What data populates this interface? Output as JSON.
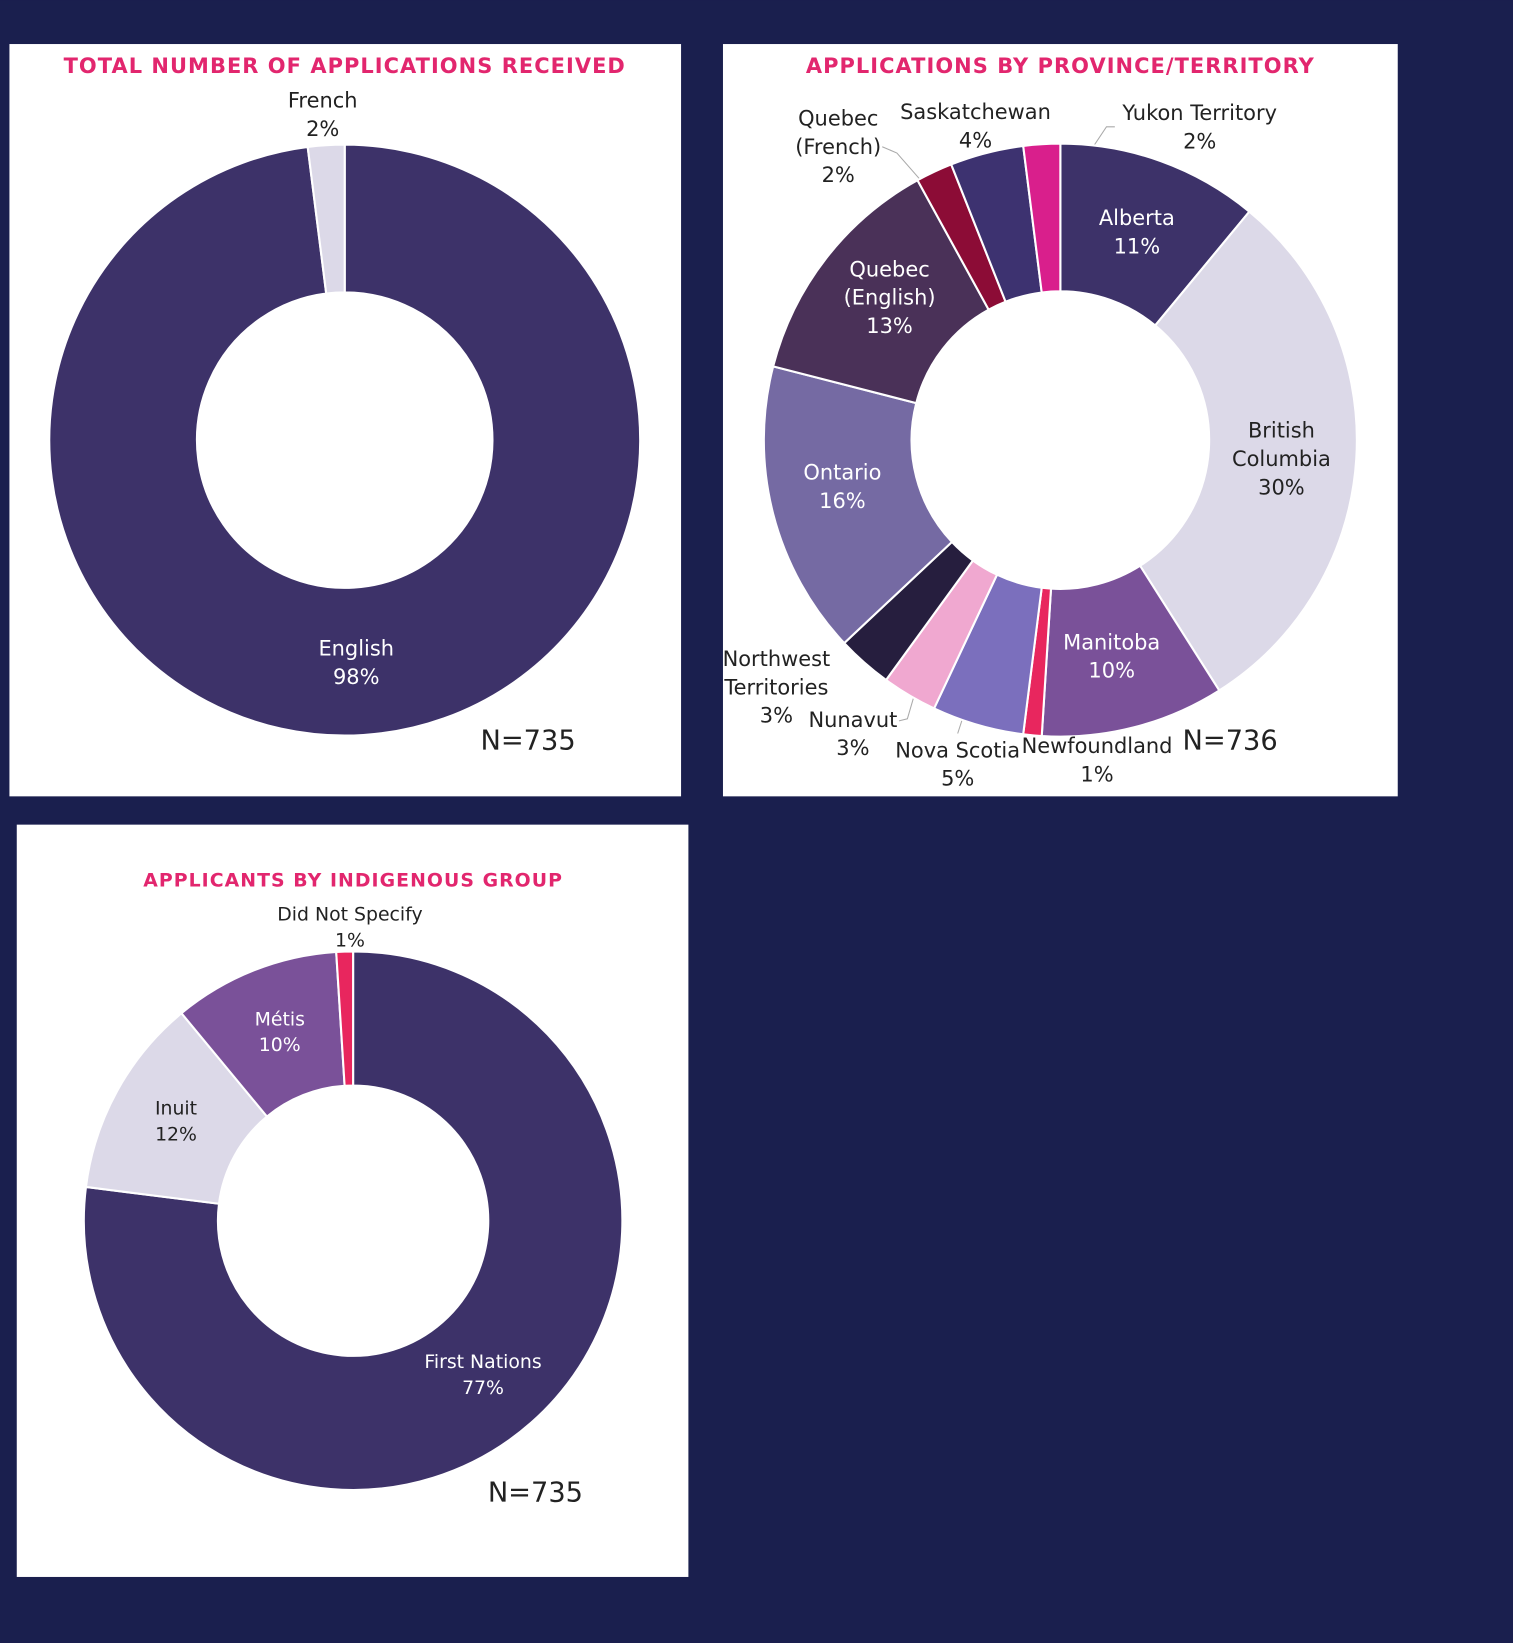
{
  "chart_data": [
    {
      "type": "donut",
      "title": "TOTAL NUMBER OF APPLICATIONS RECEIVED",
      "categories": [
        "English",
        "French"
      ],
      "values": [
        98,
        2
      ],
      "value_labels": [
        "98%",
        "2%"
      ],
      "colors": [
        "#3d3269",
        "#dcd9e8"
      ],
      "annotation": "N=735"
    },
    {
      "type": "donut",
      "title": "APPLICATIONS BY PROVINCE/TERRITORY",
      "categories": [
        "Alberta",
        "British Columbia",
        "Manitoba",
        "Newfoundland",
        "Nova Scotia",
        "Nunavut",
        "Northwest Territories",
        "Ontario",
        "Quebec (English)",
        "Quebec (French)",
        "Saskatchewan",
        "Yukon Territory"
      ],
      "values": [
        11,
        30,
        10,
        1,
        5,
        3,
        3,
        16,
        13,
        2,
        4,
        2
      ],
      "value_labels": [
        "11%",
        "30%",
        "10%",
        "1%",
        "5%",
        "3%",
        "3%",
        "16%",
        "13%",
        "2%",
        "4%",
        "2%"
      ],
      "colors": [
        "#3d3269",
        "#dcd9e8",
        "#7a5199",
        "#e8265e",
        "#7b6fbd",
        "#f0a8d0",
        "#261e3e",
        "#756aa3",
        "#4a3158",
        "#8c0c36",
        "#3d3270",
        "#d91f8c"
      ],
      "annotation": "N=736"
    },
    {
      "type": "donut",
      "title": "APPLICANTS BY INDIGENOUS GROUP",
      "categories": [
        "First Nations",
        "Inuit",
        "Métis",
        "Did Not Specify"
      ],
      "values": [
        77,
        12,
        10,
        1
      ],
      "value_labels": [
        "77%",
        "12%",
        "10%",
        "1%"
      ],
      "colors": [
        "#3d3269",
        "#dcd9e8",
        "#7a5199",
        "#e8265e"
      ],
      "annotation": "N=735"
    }
  ]
}
